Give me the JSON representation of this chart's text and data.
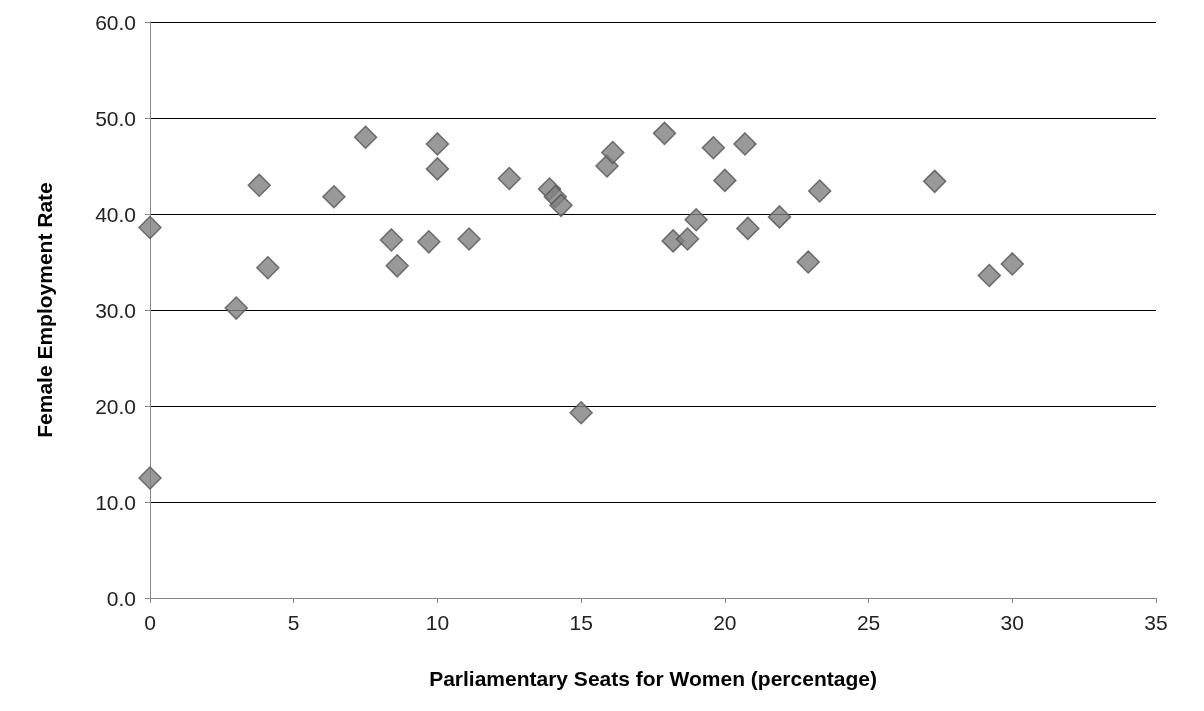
{
  "chart_data": {
    "type": "scatter",
    "xlabel": "Parliamentary Seats for Women (percentage)",
    "ylabel": "Female Employment Rate",
    "x": [
      0,
      0,
      3.0,
      3.8,
      4.1,
      6.4,
      7.5,
      8.4,
      8.6,
      9.7,
      10.0,
      10.0,
      11.1,
      12.5,
      13.9,
      14.1,
      14.3,
      15.0,
      15.9,
      16.1,
      17.9,
      18.2,
      18.7,
      19.0,
      19.6,
      20.0,
      20.7,
      20.8,
      21.9,
      22.9,
      23.3,
      27.3,
      29.2,
      30.0
    ],
    "values": [
      38.6,
      12.5,
      30.2,
      43.0,
      34.4,
      41.8,
      48.0,
      37.3,
      34.6,
      37.1,
      47.3,
      44.7,
      37.4,
      43.7,
      42.6,
      41.8,
      40.9,
      19.3,
      45.0,
      46.4,
      48.4,
      37.2,
      37.4,
      39.4,
      46.9,
      43.5,
      47.3,
      38.5,
      39.7,
      35.0,
      42.4,
      43.4,
      33.6,
      34.8
    ],
    "color": "#808080",
    "marker": "diamond",
    "grid": "y",
    "xlim": [
      0,
      35
    ],
    "xticks": [
      0,
      5,
      10,
      15,
      20,
      25,
      30,
      35
    ],
    "ylim": [
      0,
      60
    ],
    "yticks": [
      {
        "value": 0,
        "label": "0.0"
      },
      {
        "value": 10,
        "label": "10.0"
      },
      {
        "value": 20,
        "label": "20.0"
      },
      {
        "value": 30,
        "label": "30.0"
      },
      {
        "value": 40,
        "label": "40.0"
      },
      {
        "value": 50,
        "label": "50.0"
      },
      {
        "value": 60,
        "label": "60.0"
      }
    ]
  }
}
